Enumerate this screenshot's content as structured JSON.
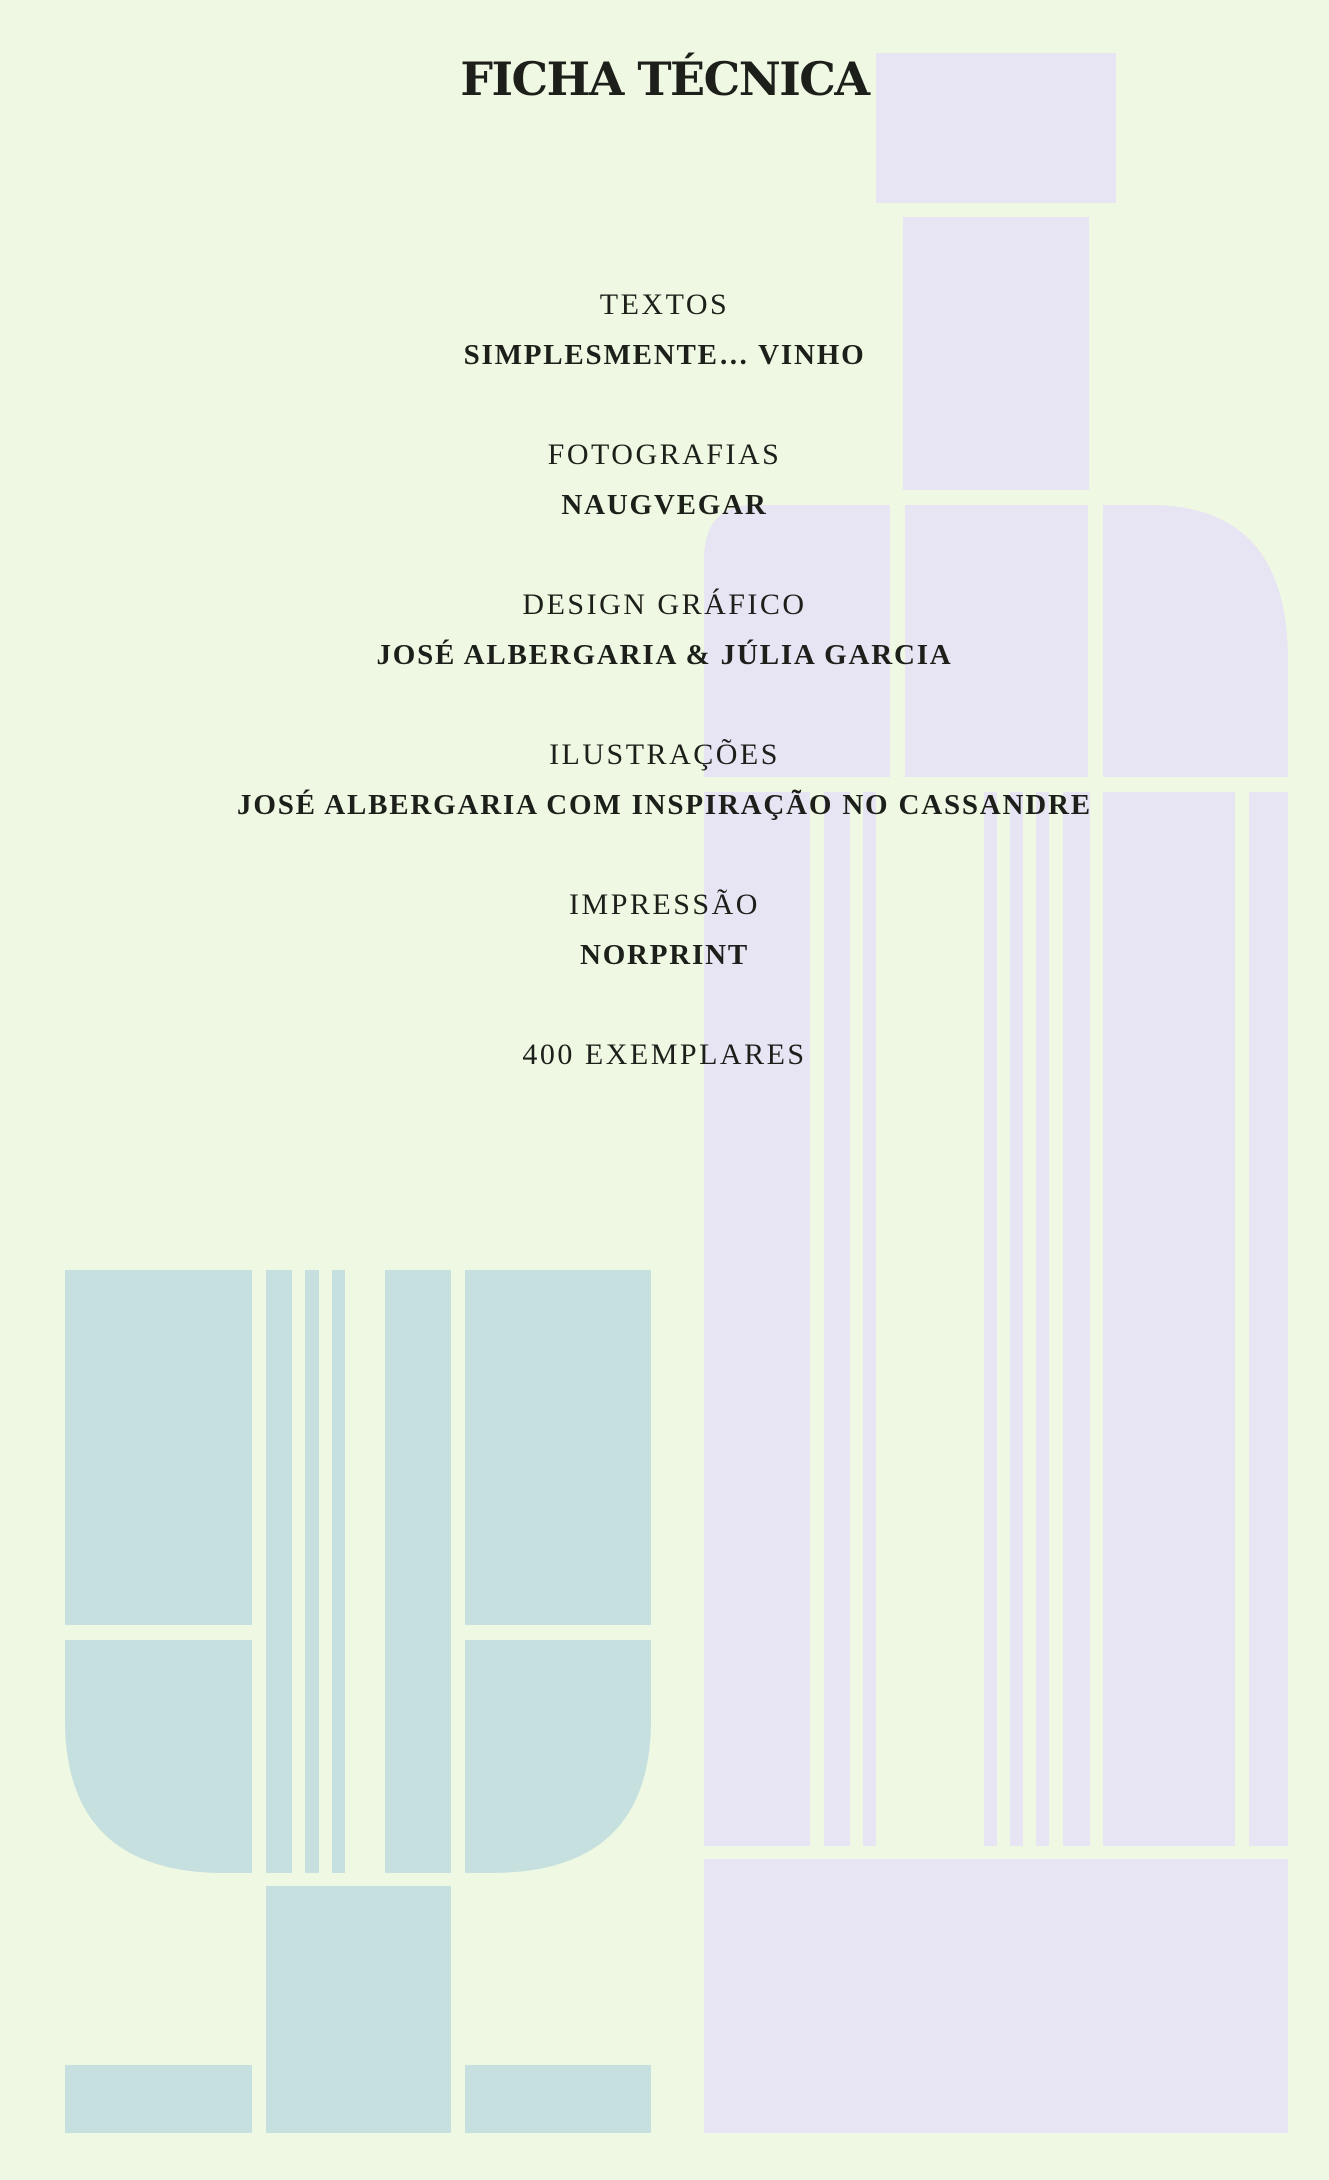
{
  "page": {
    "title": "FICHA TÉCNICA",
    "credits": [
      {
        "label": "TEXTOS",
        "value": "SIMPLESMENTE… VINHO"
      },
      {
        "label": "FOTOGRAFIAS",
        "value": "NAUGVEGAR"
      },
      {
        "label": "DESIGN GRÁFICO",
        "value": "JOSÉ ALBERGARIA & JÚLIA GARCIA"
      },
      {
        "label": "ILUSTRAÇÕES",
        "value": "JOSÉ ALBERGARIA COM INSPIRAÇÃO NO CASSANDRE"
      },
      {
        "label": "IMPRESSÃO",
        "value": "NORPRINT"
      }
    ],
    "print_run": "400 EXEMPLARES"
  },
  "illustrations": {
    "bottle": {
      "icon": "wine-bottle-icon",
      "color": "#e7e4f3"
    },
    "glass": {
      "icon": "wine-glass-icon",
      "color": "#c6dfdf"
    }
  },
  "colors": {
    "background": "#eff8e2",
    "text": "#1d1f1a"
  }
}
